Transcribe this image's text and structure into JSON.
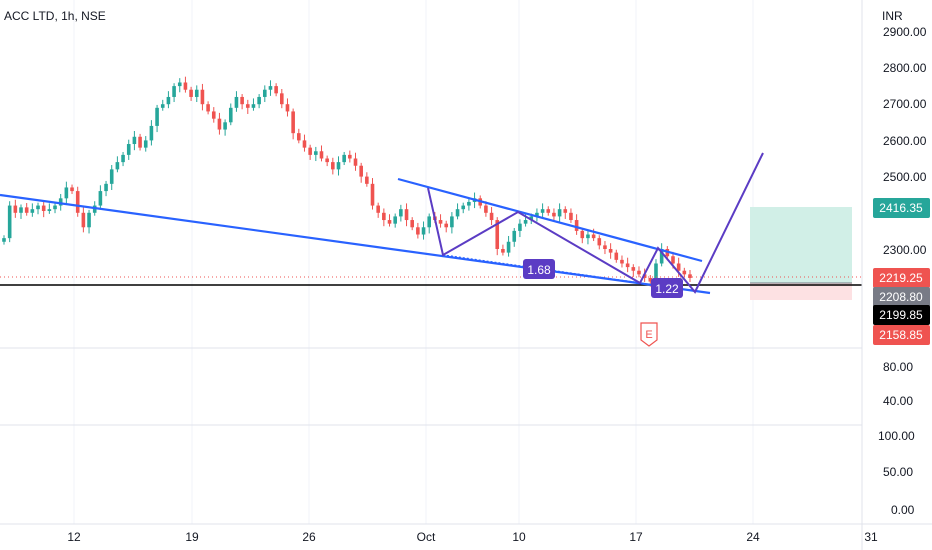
{
  "header": {
    "symbol": "ACC LTD, 1h, NSE"
  },
  "currency": "INR",
  "colors": {
    "up": "#26a69a",
    "down": "#ef5350",
    "trendline": "#2962ff",
    "pattern": "#5b3cc4",
    "label_bg": "#5b3cc4",
    "target_zone": "#d1efe7",
    "stop_zone": "#fde1e3",
    "target_badge": "#26a69a",
    "last_badge": "#ef5350",
    "mid_badge": "#787b86",
    "black_badge": "#000000"
  },
  "chart_data": {
    "type": "candlestick",
    "title": "ACC LTD, 1h, NSE",
    "y_unit": "INR",
    "price_ticks": [
      "2900.00",
      "2800.00",
      "2700.00",
      "2600.00",
      "2500.00",
      "2300.00"
    ],
    "volume_ticks": [
      "80.00",
      "40.00"
    ],
    "indicator_ticks": [
      "100.00",
      "50.00",
      "0.00"
    ],
    "x_ticks": [
      "12",
      "19",
      "26",
      "Oct",
      "10",
      "17",
      "24",
      "31"
    ],
    "price_badges": [
      {
        "value": "2416.35",
        "role": "target"
      },
      {
        "value": "2219.25",
        "role": "last"
      },
      {
        "value": "2208.80",
        "role": "entry"
      },
      {
        "value": "2199.85",
        "role": "horizontal"
      },
      {
        "value": "2158.85",
        "role": "stop"
      }
    ],
    "annotations": [
      "1.68",
      "1.22",
      "E"
    ],
    "candles_approx": [
      2330,
      2420,
      2400,
      2415,
      2400,
      2410,
      2420,
      2405,
      2410,
      2420,
      2440,
      2470,
      2460,
      2400,
      2360,
      2400,
      2420,
      2460,
      2480,
      2520,
      2540,
      2560,
      2590,
      2610,
      2580,
      2600,
      2640,
      2690,
      2700,
      2720,
      2750,
      2760,
      2740,
      2720,
      2740,
      2700,
      2680,
      2660,
      2630,
      2650,
      2690,
      2720,
      2700,
      2690,
      2700,
      2720,
      2740,
      2750,
      2730,
      2700,
      2680,
      2620,
      2600,
      2580,
      2560,
      2570,
      2550,
      2540,
      2520,
      2540,
      2560,
      2550,
      2530,
      2500,
      2480,
      2420,
      2400,
      2380,
      2370,
      2390,
      2410,
      2380,
      2360,
      2340,
      2360,
      2390,
      2380,
      2370,
      2360,
      2390,
      2410,
      2420,
      2430,
      2440,
      2420,
      2400,
      2380,
      2300,
      2290,
      2320,
      2350,
      2370,
      2380,
      2390,
      2400,
      2410,
      2400,
      2390,
      2410,
      2400,
      2380,
      2350,
      2330,
      2340,
      2330,
      2310,
      2300,
      2290,
      2270,
      2260,
      2250,
      2240,
      2230,
      2220,
      2210,
      2260,
      2300,
      2280,
      2260,
      2240,
      2230,
      2220
    ]
  }
}
